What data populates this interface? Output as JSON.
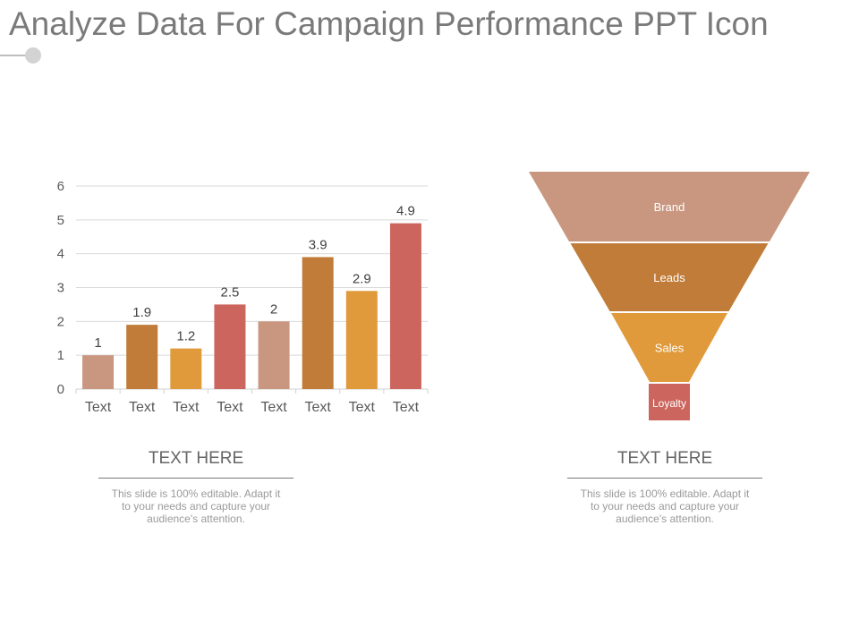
{
  "title": "Analyze Data For Campaign Performance PPT Icon",
  "colors": {
    "title": "#7a7a7a",
    "accent_line": "#bdbdbd",
    "tan": "#c9977f",
    "bronze": "#c07c38",
    "orange": "#e09a3c",
    "red": "#cc655d",
    "grid": "#d9d9d9"
  },
  "chart_data": {
    "type": "bar",
    "categories": [
      "Text",
      "Text",
      "Text",
      "Text",
      "Text",
      "Text",
      "Text",
      "Text"
    ],
    "values": [
      1,
      1.9,
      1.2,
      2.5,
      2,
      3.9,
      2.9,
      4.9
    ],
    "data_labels": [
      "1",
      "1.9",
      "1.2",
      "2.5",
      "2",
      "3.9",
      "2.9",
      "4.9"
    ],
    "bar_colors": [
      "#c9977f",
      "#c07c38",
      "#e09a3c",
      "#cc655d",
      "#c9977f",
      "#c07c38",
      "#e09a3c",
      "#cc655d"
    ],
    "ylim": [
      0,
      6
    ],
    "yticks": [
      0,
      1,
      2,
      3,
      4,
      5,
      6
    ],
    "grid": true,
    "legend": "none",
    "title": "",
    "xlabel": "",
    "ylabel": ""
  },
  "funnel": {
    "stages": [
      {
        "label": "Brand",
        "color": "#c9977f"
      },
      {
        "label": "Leads",
        "color": "#c07c38"
      },
      {
        "label": "Sales",
        "color": "#e09a3c"
      },
      {
        "label": "Loyalty",
        "color": "#cc655d"
      }
    ]
  },
  "captions": [
    {
      "heading": "TEXT HERE",
      "body": "This slide is 100% editable. Adapt it to your needs and capture your audience's attention."
    },
    {
      "heading": "TEXT HERE",
      "body": "This slide is 100% editable. Adapt it to your needs and capture your audience's attention."
    }
  ]
}
